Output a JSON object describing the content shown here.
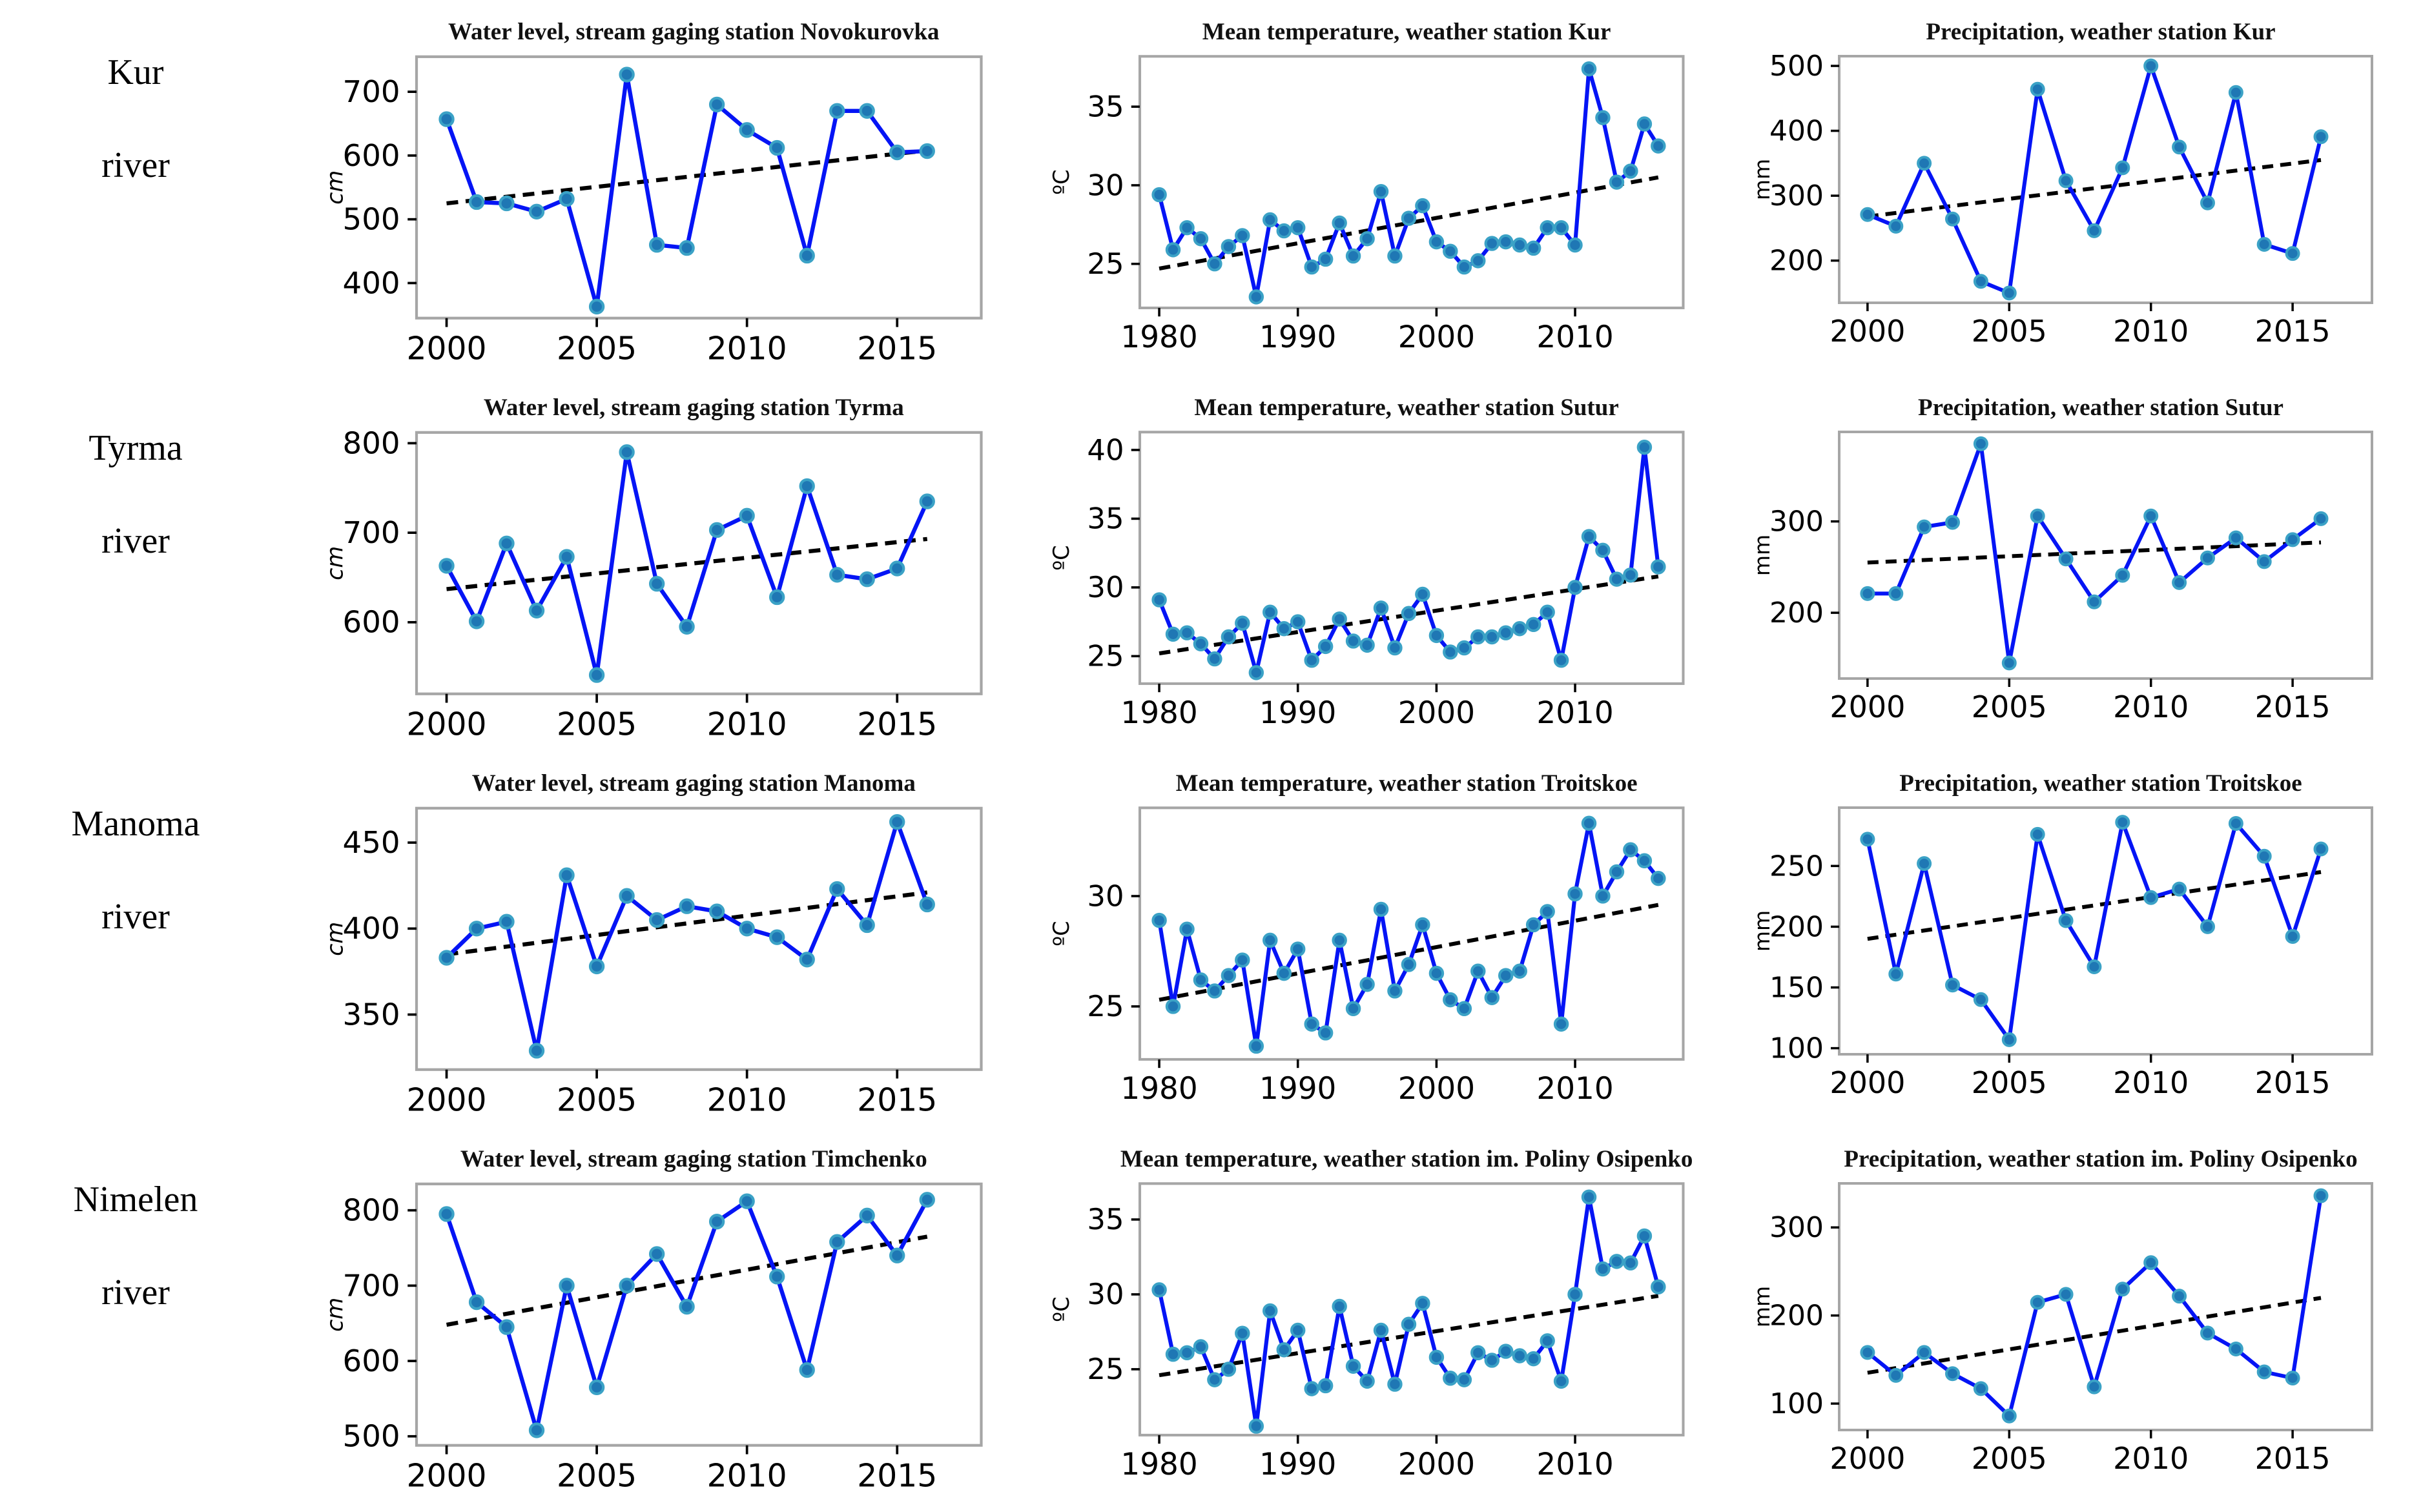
{
  "figure": {
    "rows": [
      {
        "line1": "Kur",
        "line2": "river"
      },
      {
        "line1": "Tyrma",
        "line2": "river"
      },
      {
        "line1": "Manoma",
        "line2": "river"
      },
      {
        "line1": "Nimelen",
        "line2": "river"
      }
    ]
  },
  "colors": {
    "line": "#0414f5",
    "marker_fill": "#1f77b4",
    "marker_edge": "#3ba2c6",
    "trend": "#000000",
    "frame": "#a6a6a6",
    "tick": "#000000"
  },
  "chart_data": [
    {
      "type": "line",
      "title": "Water level, stream gaging station Novokurovka",
      "ylabel": "cm",
      "ylabel_italic": true,
      "x": [
        2000,
        2001,
        2002,
        2003,
        2004,
        2005,
        2006,
        2007,
        2008,
        2009,
        2010,
        2011,
        2012,
        2013,
        2014,
        2015,
        2016
      ],
      "values": [
        657,
        527,
        525,
        512,
        532,
        363,
        727,
        460,
        455,
        680,
        640,
        612,
        443,
        670,
        670,
        605,
        607
      ],
      "trend": {
        "x0": 2000,
        "y0": 525,
        "x1": 2016,
        "y1": 608
      },
      "xlim": [
        1999.0,
        2017.8
      ],
      "ylim": [
        345,
        755
      ],
      "xticks": [
        2000,
        2005,
        2010,
        2015
      ],
      "yticks": [
        400,
        500,
        600,
        700
      ],
      "legend": "none",
      "grid": false
    },
    {
      "type": "line",
      "title": "Mean temperature, weather station Kur",
      "ylabel": "ºC",
      "ylabel_italic": false,
      "x": [
        1980,
        1981,
        1982,
        1983,
        1984,
        1985,
        1986,
        1987,
        1988,
        1989,
        1990,
        1991,
        1992,
        1993,
        1994,
        1995,
        1996,
        1997,
        1998,
        1999,
        2000,
        2001,
        2002,
        2003,
        2004,
        2005,
        2006,
        2007,
        2008,
        2009,
        2010,
        2011,
        2012,
        2013,
        2014,
        2015,
        2016
      ],
      "values": [
        29.4,
        25.9,
        27.3,
        26.6,
        25.0,
        26.1,
        26.8,
        22.9,
        27.8,
        27.1,
        27.3,
        24.8,
        25.3,
        27.6,
        25.5,
        26.6,
        29.6,
        25.5,
        27.9,
        28.7,
        26.4,
        25.8,
        24.8,
        25.2,
        26.3,
        26.4,
        26.2,
        26.0,
        27.3,
        27.3,
        26.2,
        37.4,
        34.3,
        30.2,
        30.9,
        33.9,
        32.5
      ],
      "trend": {
        "x0": 1980,
        "y0": 24.7,
        "x1": 2016,
        "y1": 30.5
      },
      "xlim": [
        1978.6,
        2017.8
      ],
      "ylim": [
        22.2,
        38.2
      ],
      "xticks": [
        1980,
        1990,
        2000,
        2010
      ],
      "yticks": [
        25,
        30,
        35
      ],
      "legend": "none",
      "grid": false
    },
    {
      "type": "line",
      "title": "Precipitation, weather station Kur",
      "ylabel": "mm",
      "ylabel_italic": false,
      "x": [
        2000,
        2001,
        2002,
        2003,
        2004,
        2005,
        2006,
        2007,
        2008,
        2009,
        2010,
        2011,
        2012,
        2013,
        2014,
        2015,
        2016
      ],
      "values": [
        271,
        253,
        350,
        264,
        168,
        150,
        464,
        323,
        246,
        343,
        500,
        375,
        289,
        459,
        225,
        211,
        391
      ],
      "trend": {
        "x0": 2000,
        "y0": 268,
        "x1": 2016,
        "y1": 355
      },
      "xlim": [
        1999.0,
        2017.8
      ],
      "ylim": [
        135,
        515
      ],
      "xticks": [
        2000,
        2005,
        2010,
        2015
      ],
      "yticks": [
        200,
        300,
        400,
        500
      ],
      "legend": "none",
      "grid": false
    },
    {
      "type": "line",
      "title": "Water level, stream gaging station Tyrma",
      "ylabel": "cm",
      "ylabel_italic": true,
      "x": [
        2000,
        2001,
        2002,
        2003,
        2004,
        2005,
        2006,
        2007,
        2008,
        2009,
        2010,
        2011,
        2012,
        2013,
        2014,
        2015,
        2016
      ],
      "values": [
        663,
        601,
        688,
        613,
        673,
        541,
        790,
        643,
        595,
        703,
        719,
        628,
        752,
        653,
        648,
        660,
        735
      ],
      "trend": {
        "x0": 2000,
        "y0": 637,
        "x1": 2016,
        "y1": 693
      },
      "xlim": [
        1999.0,
        2017.8
      ],
      "ylim": [
        520,
        812
      ],
      "xticks": [
        2000,
        2005,
        2010,
        2015
      ],
      "yticks": [
        600,
        700,
        800
      ],
      "legend": "none",
      "grid": false
    },
    {
      "type": "line",
      "title": "Mean temperature, weather station Sutur",
      "ylabel": "ºC",
      "ylabel_italic": false,
      "x": [
        1980,
        1981,
        1982,
        1983,
        1984,
        1985,
        1986,
        1987,
        1988,
        1989,
        1990,
        1991,
        1992,
        1993,
        1994,
        1995,
        1996,
        1997,
        1998,
        1999,
        2000,
        2001,
        2002,
        2003,
        2004,
        2005,
        2006,
        2007,
        2008,
        2009,
        2010,
        2011,
        2012,
        2013,
        2014,
        2015,
        2016
      ],
      "values": [
        29.1,
        26.6,
        26.7,
        25.9,
        24.8,
        26.4,
        27.4,
        23.8,
        28.2,
        27.0,
        27.5,
        24.7,
        25.7,
        27.7,
        26.1,
        25.8,
        28.5,
        25.6,
        28.1,
        29.5,
        26.5,
        25.3,
        25.6,
        26.4,
        26.4,
        26.7,
        27.0,
        27.3,
        28.2,
        24.7,
        30.0,
        33.7,
        32.7,
        30.6,
        30.9,
        40.2,
        31.5
      ],
      "trend": {
        "x0": 1980,
        "y0": 25.2,
        "x1": 2016,
        "y1": 30.8
      },
      "xlim": [
        1978.6,
        2017.8
      ],
      "ylim": [
        23.0,
        41.3
      ],
      "xticks": [
        1980,
        1990,
        2000,
        2010
      ],
      "yticks": [
        25,
        30,
        35,
        40
      ],
      "legend": "none",
      "grid": false
    },
    {
      "type": "line",
      "title": "Precipitation, weather station Sutur",
      "ylabel": "mm",
      "ylabel_italic": false,
      "x": [
        2000,
        2001,
        2002,
        2003,
        2004,
        2005,
        2006,
        2007,
        2008,
        2009,
        2010,
        2011,
        2012,
        2013,
        2014,
        2015,
        2016
      ],
      "values": [
        221,
        221,
        294,
        299,
        385,
        145,
        306,
        259,
        212,
        241,
        306,
        233,
        260,
        282,
        256,
        280,
        303
      ],
      "trend": {
        "x0": 2000,
        "y0": 255,
        "x1": 2016,
        "y1": 277
      },
      "xlim": [
        1999.0,
        2017.8
      ],
      "ylim": [
        128,
        398
      ],
      "xticks": [
        2000,
        2005,
        2010,
        2015
      ],
      "yticks": [
        200,
        300
      ],
      "legend": "none",
      "grid": false
    },
    {
      "type": "line",
      "title": "Water level, stream gaging station Manoma",
      "ylabel": "cm",
      "ylabel_italic": true,
      "x": [
        2000,
        2001,
        2002,
        2003,
        2004,
        2005,
        2006,
        2007,
        2008,
        2009,
        2010,
        2011,
        2012,
        2013,
        2014,
        2015,
        2016
      ],
      "values": [
        383,
        400,
        404,
        329,
        431,
        378,
        419,
        405,
        413,
        410,
        400,
        395,
        382,
        423,
        402,
        462,
        414
      ],
      "trend": {
        "x0": 2000,
        "y0": 385,
        "x1": 2016,
        "y1": 421
      },
      "xlim": [
        1999.0,
        2017.8
      ],
      "ylim": [
        318,
        470
      ],
      "xticks": [
        2000,
        2005,
        2010,
        2015
      ],
      "yticks": [
        350,
        400,
        450
      ],
      "legend": "none",
      "grid": false
    },
    {
      "type": "line",
      "title": "Mean temperature, weather station Troitskoe",
      "ylabel": "ºC",
      "ylabel_italic": false,
      "x": [
        1980,
        1981,
        1982,
        1983,
        1984,
        1985,
        1986,
        1987,
        1988,
        1989,
        1990,
        1991,
        1992,
        1993,
        1994,
        1995,
        1996,
        1997,
        1998,
        1999,
        2000,
        2001,
        2002,
        2003,
        2004,
        2005,
        2006,
        2007,
        2008,
        2009,
        2010,
        2011,
        2012,
        2013,
        2014,
        2015,
        2016
      ],
      "values": [
        28.9,
        25.0,
        28.5,
        26.2,
        25.7,
        26.4,
        27.1,
        23.2,
        28.0,
        26.5,
        27.6,
        24.2,
        23.8,
        28.0,
        24.9,
        26.0,
        29.4,
        25.7,
        26.9,
        28.7,
        26.5,
        25.3,
        24.9,
        26.6,
        25.4,
        26.4,
        26.6,
        28.7,
        29.3,
        24.2,
        30.1,
        33.3,
        30.0,
        31.1,
        32.1,
        31.6,
        30.8
      ],
      "trend": {
        "x0": 1980,
        "y0": 25.3,
        "x1": 2016,
        "y1": 29.6
      },
      "xlim": [
        1978.6,
        2017.8
      ],
      "ylim": [
        22.6,
        34.0
      ],
      "xticks": [
        1980,
        1990,
        2000,
        2010
      ],
      "yticks": [
        25,
        30
      ],
      "legend": "none",
      "grid": false
    },
    {
      "type": "line",
      "title": "Precipitation, weather station Troitskoe",
      "ylabel": "mm",
      "ylabel_italic": false,
      "x": [
        2000,
        2001,
        2002,
        2003,
        2004,
        2005,
        2006,
        2007,
        2008,
        2009,
        2010,
        2011,
        2012,
        2013,
        2014,
        2015,
        2016
      ],
      "values": [
        272,
        161,
        252,
        152,
        140,
        107,
        276,
        205,
        167,
        286,
        224,
        231,
        200,
        285,
        258,
        192,
        264
      ],
      "trend": {
        "x0": 2000,
        "y0": 190,
        "x1": 2016,
        "y1": 245
      },
      "xlim": [
        1999.0,
        2017.8
      ],
      "ylim": [
        95,
        298
      ],
      "xticks": [
        2000,
        2005,
        2010,
        2015
      ],
      "yticks": [
        100,
        150,
        200,
        250
      ],
      "legend": "none",
      "grid": false
    },
    {
      "type": "line",
      "title": "Water level, stream gaging station Timchenko",
      "ylabel": "cm",
      "ylabel_italic": true,
      "x": [
        2000,
        2001,
        2002,
        2003,
        2004,
        2005,
        2006,
        2007,
        2008,
        2009,
        2010,
        2011,
        2012,
        2013,
        2014,
        2015,
        2016
      ],
      "values": [
        795,
        678,
        645,
        508,
        700,
        565,
        700,
        742,
        672,
        785,
        812,
        712,
        588,
        758,
        793,
        740,
        814
      ],
      "trend": {
        "x0": 2000,
        "y0": 648,
        "x1": 2016,
        "y1": 765
      },
      "xlim": [
        1999.0,
        2017.8
      ],
      "ylim": [
        488,
        835
      ],
      "xticks": [
        2000,
        2005,
        2010,
        2015
      ],
      "yticks": [
        500,
        600,
        700,
        800
      ],
      "legend": "none",
      "grid": false
    },
    {
      "type": "line",
      "title": "Mean temperature, weather station im. Poliny Osipenko",
      "ylabel": "ºC",
      "ylabel_italic": false,
      "x": [
        1980,
        1981,
        1982,
        1983,
        1984,
        1985,
        1986,
        1987,
        1988,
        1989,
        1990,
        1991,
        1992,
        1993,
        1994,
        1995,
        1996,
        1997,
        1998,
        1999,
        2000,
        2001,
        2002,
        2003,
        2004,
        2005,
        2006,
        2007,
        2008,
        2009,
        2010,
        2011,
        2012,
        2013,
        2014,
        2015,
        2016
      ],
      "values": [
        30.3,
        26.0,
        26.1,
        26.5,
        24.3,
        25.0,
        27.4,
        21.2,
        28.9,
        26.3,
        27.6,
        23.7,
        23.9,
        29.2,
        25.2,
        24.2,
        27.6,
        24.0,
        28.0,
        29.4,
        25.8,
        24.4,
        24.3,
        26.1,
        25.6,
        26.2,
        25.9,
        25.7,
        26.9,
        24.2,
        30.0,
        36.5,
        31.7,
        32.2,
        32.1,
        33.9,
        30.5
      ],
      "trend": {
        "x0": 1980,
        "y0": 24.6,
        "x1": 2016,
        "y1": 29.9
      },
      "xlim": [
        1978.6,
        2017.8
      ],
      "ylim": [
        20.6,
        37.4
      ],
      "xticks": [
        1980,
        1990,
        2000,
        2010
      ],
      "yticks": [
        25,
        30,
        35
      ],
      "legend": "none",
      "grid": false
    },
    {
      "type": "line",
      "title": "Precipitation, weather station im. Poliny Osipenko",
      "ylabel": "mm",
      "ylabel_italic": false,
      "x": [
        2000,
        2001,
        2002,
        2003,
        2004,
        2005,
        2006,
        2007,
        2008,
        2009,
        2010,
        2011,
        2012,
        2013,
        2014,
        2015,
        2016
      ],
      "values": [
        158,
        132,
        158,
        134,
        117,
        86,
        215,
        224,
        119,
        230,
        260,
        222,
        180,
        162,
        136,
        129,
        336
      ],
      "trend": {
        "x0": 2000,
        "y0": 135,
        "x1": 2016,
        "y1": 220
      },
      "xlim": [
        1999.0,
        2017.8
      ],
      "ylim": [
        70,
        350
      ],
      "xticks": [
        2000,
        2005,
        2010,
        2015
      ],
      "yticks": [
        100,
        200,
        300
      ],
      "legend": "none",
      "grid": false
    }
  ]
}
